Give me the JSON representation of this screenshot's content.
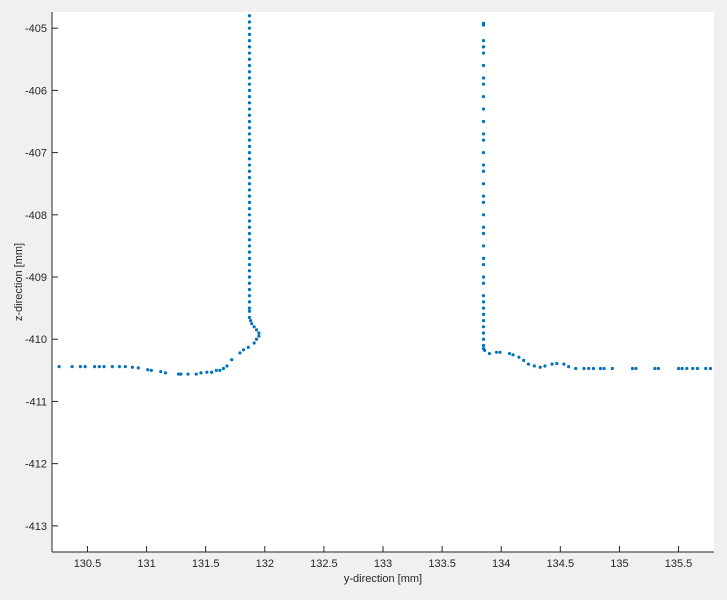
{
  "chart_data": {
    "type": "scatter",
    "title": "",
    "xlabel": "y-direction [mm]",
    "ylabel": "z-direction [mm]",
    "xlim": [
      130.2,
      135.8
    ],
    "ylim": [
      -413.42,
      -404.74
    ],
    "xticks": [
      130.5,
      131,
      131.5,
      132,
      132.5,
      133,
      133.5,
      134,
      134.5,
      135,
      135.5
    ],
    "xtick_labels": [
      "130.5",
      "131",
      "131.5",
      "132",
      "132.5",
      "133",
      "133.5",
      "134",
      "134.5",
      "135",
      "135.5"
    ],
    "yticks": [
      -405,
      -406,
      -407,
      -408,
      -409,
      -410,
      -411,
      -412,
      -413
    ],
    "ytick_labels": [
      "-405",
      "-406",
      "-407",
      "-408",
      "-409",
      "-410",
      "-411",
      "-412",
      "-413"
    ],
    "grid": false,
    "box": false,
    "marker_color": "#0072bd",
    "series": [
      {
        "points": [
          [
            130.26,
            -410.44
          ],
          [
            130.37,
            -410.44
          ],
          [
            130.44,
            -410.44
          ],
          [
            130.48,
            -410.44
          ],
          [
            130.56,
            -410.44
          ],
          [
            130.6,
            -410.44
          ],
          [
            130.64,
            -410.44
          ],
          [
            130.71,
            -410.44
          ],
          [
            130.77,
            -410.44
          ],
          [
            130.82,
            -410.44
          ],
          [
            130.88,
            -410.45
          ],
          [
            130.93,
            -410.46
          ],
          [
            131.01,
            -410.49
          ],
          [
            131.04,
            -410.5
          ],
          [
            131.12,
            -410.52
          ],
          [
            131.16,
            -410.54
          ],
          [
            131.27,
            -410.56
          ],
          [
            131.29,
            -410.56
          ],
          [
            131.35,
            -410.56
          ],
          [
            131.42,
            -410.56
          ],
          [
            131.46,
            -410.54
          ],
          [
            131.51,
            -410.53
          ],
          [
            131.55,
            -410.53
          ],
          [
            131.59,
            -410.5
          ],
          [
            131.62,
            -410.5
          ],
          [
            131.65,
            -410.47
          ],
          [
            131.68,
            -410.43
          ],
          [
            131.72,
            -410.33
          ],
          [
            131.79,
            -410.22
          ],
          [
            131.82,
            -410.17
          ],
          [
            131.86,
            -410.13
          ],
          [
            131.91,
            -410.06
          ],
          [
            131.93,
            -410.0
          ],
          [
            131.95,
            -409.95
          ],
          [
            131.95,
            -409.9
          ],
          [
            131.93,
            -409.85
          ],
          [
            131.91,
            -409.8
          ],
          [
            131.89,
            -409.75
          ],
          [
            131.88,
            -409.7
          ],
          [
            131.87,
            -409.65
          ],
          [
            131.87,
            -409.55
          ],
          [
            131.87,
            -409.5
          ],
          [
            131.87,
            -409.4
          ],
          [
            131.87,
            -409.3
          ],
          [
            131.87,
            -409.2
          ],
          [
            131.87,
            -409.1
          ],
          [
            131.87,
            -409.0
          ],
          [
            131.87,
            -408.9
          ],
          [
            131.87,
            -408.8
          ],
          [
            131.87,
            -408.7
          ],
          [
            131.87,
            -408.6
          ],
          [
            131.87,
            -408.5
          ],
          [
            131.87,
            -408.4
          ],
          [
            131.87,
            -408.3
          ],
          [
            131.87,
            -408.2
          ],
          [
            131.87,
            -408.1
          ],
          [
            131.87,
            -408.0
          ],
          [
            131.87,
            -407.9
          ],
          [
            131.87,
            -407.8
          ],
          [
            131.87,
            -407.7
          ],
          [
            131.87,
            -407.6
          ],
          [
            131.87,
            -407.5
          ],
          [
            131.87,
            -407.4
          ],
          [
            131.87,
            -407.3
          ],
          [
            131.87,
            -407.2
          ],
          [
            131.87,
            -407.1
          ],
          [
            131.87,
            -407.0
          ],
          [
            131.87,
            -406.9
          ],
          [
            131.87,
            -406.8
          ],
          [
            131.87,
            -406.7
          ],
          [
            131.87,
            -406.6
          ],
          [
            131.87,
            -406.5
          ],
          [
            131.87,
            -406.4
          ],
          [
            131.87,
            -406.3
          ],
          [
            131.87,
            -406.2
          ],
          [
            131.87,
            -406.1
          ],
          [
            131.87,
            -406.0
          ],
          [
            131.87,
            -405.9
          ],
          [
            131.87,
            -405.8
          ],
          [
            131.87,
            -405.7
          ],
          [
            131.87,
            -405.6
          ],
          [
            131.87,
            -405.5
          ],
          [
            131.87,
            -405.4
          ],
          [
            131.87,
            -405.3
          ],
          [
            131.87,
            -405.2
          ],
          [
            131.87,
            -405.1
          ],
          [
            131.87,
            -405.0
          ],
          [
            131.87,
            -404.9
          ],
          [
            131.87,
            -404.8
          ],
          [
            133.85,
            -404.92
          ],
          [
            133.85,
            -404.95
          ],
          [
            133.85,
            -405.2
          ],
          [
            133.85,
            -405.3
          ],
          [
            133.85,
            -405.4
          ],
          [
            133.85,
            -405.6
          ],
          [
            133.85,
            -405.8
          ],
          [
            133.85,
            -405.9
          ],
          [
            133.85,
            -406.1
          ],
          [
            133.85,
            -406.3
          ],
          [
            133.85,
            -406.5
          ],
          [
            133.85,
            -406.7
          ],
          [
            133.85,
            -406.8
          ],
          [
            133.85,
            -407.0
          ],
          [
            133.85,
            -407.2
          ],
          [
            133.85,
            -407.3
          ],
          [
            133.85,
            -407.5
          ],
          [
            133.85,
            -407.7
          ],
          [
            133.85,
            -407.8
          ],
          [
            133.85,
            -408.0
          ],
          [
            133.85,
            -408.2
          ],
          [
            133.85,
            -408.3
          ],
          [
            133.85,
            -408.5
          ],
          [
            133.85,
            -408.7
          ],
          [
            133.85,
            -408.8
          ],
          [
            133.85,
            -409.0
          ],
          [
            133.85,
            -409.1
          ],
          [
            133.85,
            -409.3
          ],
          [
            133.85,
            -409.4
          ],
          [
            133.85,
            -409.5
          ],
          [
            133.85,
            -409.6
          ],
          [
            133.85,
            -409.7
          ],
          [
            133.85,
            -409.8
          ],
          [
            133.85,
            -409.9
          ],
          [
            133.85,
            -410.0
          ],
          [
            133.85,
            -410.1
          ],
          [
            133.85,
            -410.15
          ],
          [
            133.86,
            -410.18
          ],
          [
            133.9,
            -410.23
          ],
          [
            133.96,
            -410.21
          ],
          [
            133.99,
            -410.21
          ],
          [
            134.07,
            -410.23
          ],
          [
            134.1,
            -410.25
          ],
          [
            134.15,
            -410.29
          ],
          [
            134.19,
            -410.34
          ],
          [
            134.23,
            -410.4
          ],
          [
            134.28,
            -410.43
          ],
          [
            134.33,
            -410.45
          ],
          [
            134.37,
            -410.43
          ],
          [
            134.43,
            -410.4
          ],
          [
            134.47,
            -410.39
          ],
          [
            134.53,
            -410.4
          ],
          [
            134.57,
            -410.44
          ],
          [
            134.63,
            -410.47
          ],
          [
            134.7,
            -410.47
          ],
          [
            134.74,
            -410.47
          ],
          [
            134.78,
            -410.47
          ],
          [
            134.84,
            -410.47
          ],
          [
            134.87,
            -410.47
          ],
          [
            134.94,
            -410.47
          ],
          [
            135.11,
            -410.47
          ],
          [
            135.14,
            -410.47
          ],
          [
            135.3,
            -410.47
          ],
          [
            135.33,
            -410.47
          ],
          [
            135.5,
            -410.47
          ],
          [
            135.53,
            -410.47
          ],
          [
            135.57,
            -410.47
          ],
          [
            135.62,
            -410.47
          ],
          [
            135.66,
            -410.47
          ],
          [
            135.73,
            -410.47
          ],
          [
            135.77,
            -410.47
          ]
        ]
      }
    ]
  }
}
